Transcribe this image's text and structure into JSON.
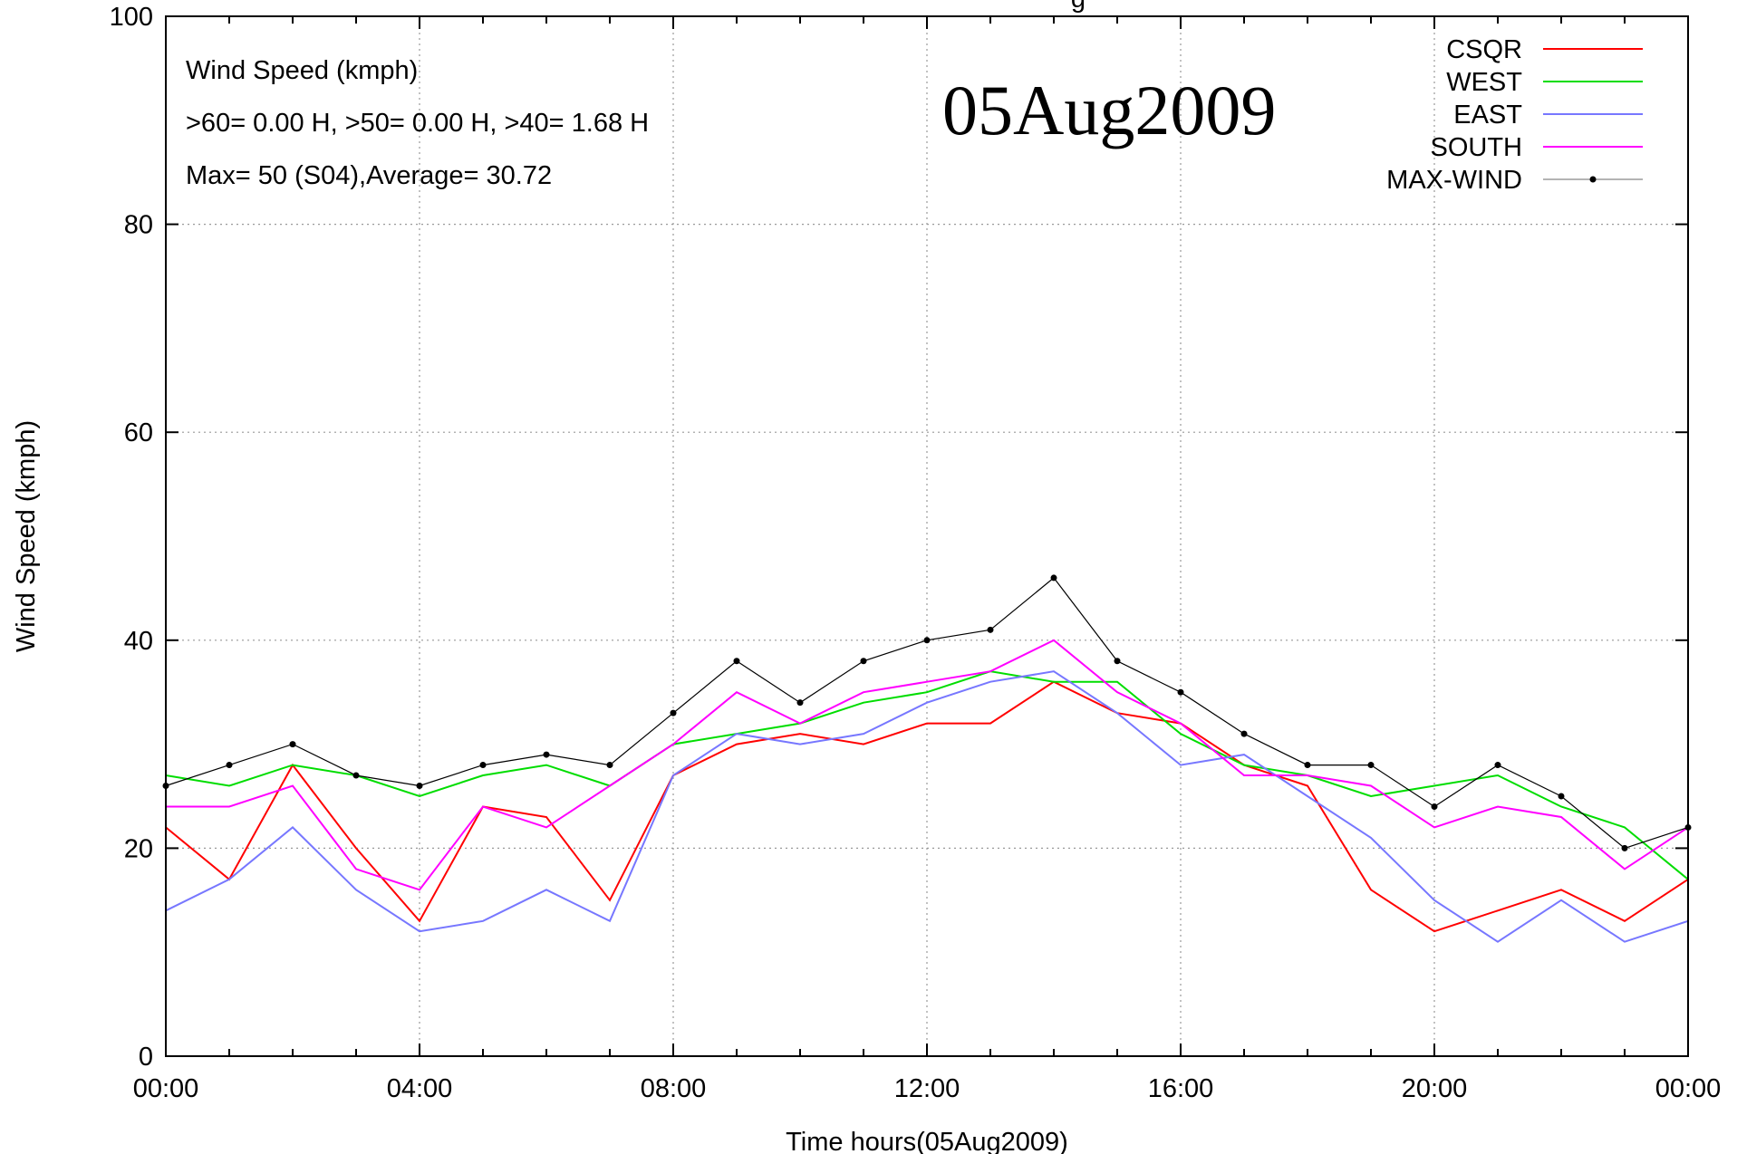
{
  "chart_data": {
    "type": "line",
    "title_fragment": "g",
    "xlabel": "Time hours(05Aug2009)",
    "ylabel": "Wind Speed (kmph)",
    "ylim": [
      0,
      100
    ],
    "yticks": [
      "0",
      "20",
      "40",
      "60",
      "80",
      "100"
    ],
    "xlim_hours": [
      0,
      24
    ],
    "xticks": [
      "00:00",
      "04:00",
      "08:00",
      "12:00",
      "16:00",
      "20:00",
      "00:00"
    ],
    "grid": true,
    "legend_position": "top-right",
    "date_stamp": "05Aug2009",
    "stats": [
      "Wind Speed (kmph)",
      ">60=  0.00 H, >50=  0.00 H, >40=  1.68 H",
      "Max= 50 (S04),Average= 30.72"
    ],
    "series": [
      {
        "name": "CSQR",
        "color": "#ff0000",
        "x": [
          0,
          1,
          2,
          3,
          4,
          5,
          6,
          7,
          8,
          9,
          10,
          11,
          12,
          13,
          14,
          15,
          16,
          17,
          18,
          19,
          20,
          21,
          22,
          23,
          24
        ],
        "values": [
          22,
          17,
          28,
          20,
          13,
          24,
          23,
          15,
          27,
          30,
          31,
          30,
          32,
          32,
          36,
          33,
          32,
          28,
          26,
          16,
          12,
          14,
          16,
          13,
          17
        ]
      },
      {
        "name": "WEST",
        "color": "#00dd00",
        "x": [
          0,
          1,
          2,
          3,
          4,
          5,
          6,
          7,
          8,
          9,
          10,
          11,
          12,
          13,
          14,
          15,
          16,
          17,
          18,
          19,
          20,
          21,
          22,
          23,
          24
        ],
        "values": [
          27,
          26,
          28,
          27,
          25,
          27,
          28,
          26,
          30,
          31,
          32,
          34,
          35,
          37,
          36,
          36,
          31,
          28,
          27,
          25,
          26,
          27,
          24,
          22,
          17
        ]
      },
      {
        "name": "EAST",
        "color": "#7777ff",
        "x": [
          0,
          1,
          2,
          3,
          4,
          5,
          6,
          7,
          8,
          9,
          10,
          11,
          12,
          13,
          14,
          15,
          16,
          17,
          18,
          19,
          20,
          21,
          22,
          23,
          24
        ],
        "values": [
          14,
          17,
          22,
          16,
          12,
          13,
          16,
          13,
          27,
          31,
          30,
          31,
          34,
          36,
          37,
          33,
          28,
          29,
          25,
          21,
          15,
          11,
          15,
          11,
          13
        ]
      },
      {
        "name": "SOUTH",
        "color": "#ff00ff",
        "x": [
          0,
          1,
          2,
          3,
          4,
          5,
          6,
          7,
          8,
          9,
          10,
          11,
          12,
          13,
          14,
          15,
          16,
          17,
          18,
          19,
          20,
          21,
          22,
          23,
          24
        ],
        "values": [
          24,
          24,
          26,
          18,
          16,
          24,
          22,
          26,
          30,
          35,
          32,
          35,
          36,
          37,
          40,
          35,
          32,
          27,
          27,
          26,
          22,
          24,
          23,
          18,
          22
        ]
      },
      {
        "name": "MAX-WIND",
        "color": "#000000",
        "x": [
          0,
          1,
          2,
          3,
          4,
          5,
          6,
          7,
          8,
          9,
          10,
          11,
          12,
          13,
          14,
          15,
          16,
          17,
          18,
          19,
          20,
          21,
          22,
          23,
          24
        ],
        "values": [
          26,
          28,
          30,
          27,
          26,
          28,
          29,
          28,
          33,
          38,
          34,
          38,
          40,
          41,
          46,
          38,
          35,
          31,
          28,
          28,
          24,
          28,
          25,
          20,
          22
        ]
      }
    ]
  }
}
